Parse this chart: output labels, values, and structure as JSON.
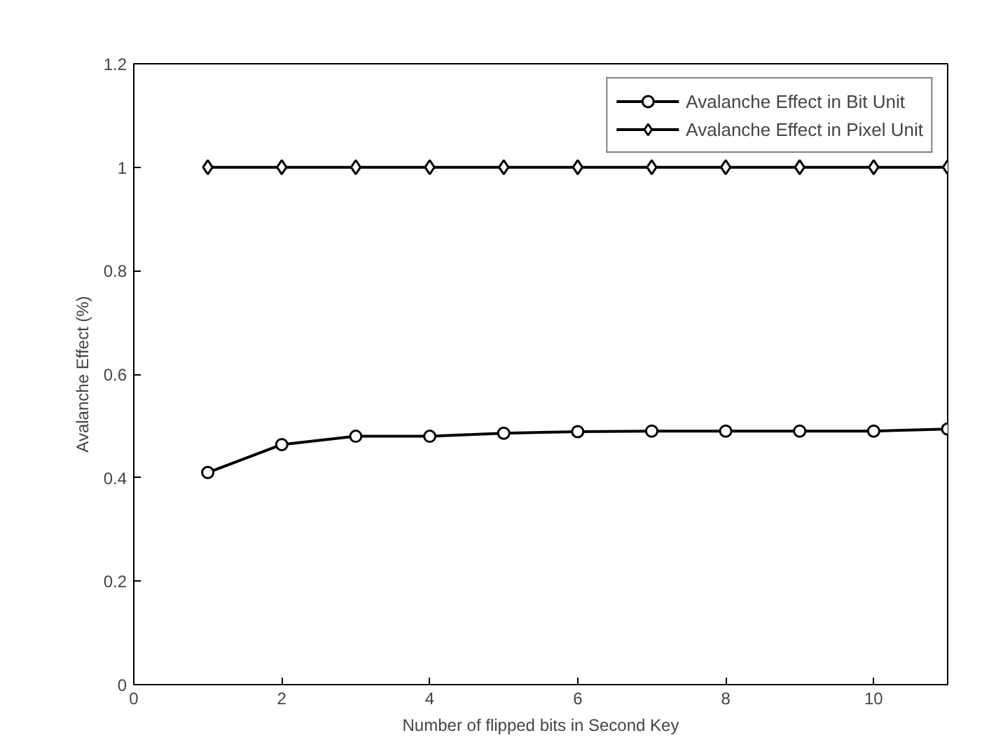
{
  "chart_data": {
    "type": "line",
    "xlabel": "Number of flipped bits in Second Key",
    "ylabel": "Avalanche Effect (%)",
    "x": [
      1,
      2,
      3,
      4,
      5,
      6,
      7,
      8,
      9,
      10,
      11
    ],
    "series": [
      {
        "name": "Avalanche Effect in Bit Unit",
        "color": "#000000",
        "marker": "circle",
        "values": [
          0.41,
          0.464,
          0.48,
          0.48,
          0.486,
          0.489,
          0.49,
          0.49,
          0.49,
          0.49,
          0.494
        ]
      },
      {
        "name": "Avalanche Effect in Pixel Unit",
        "color": "#000000",
        "marker": "diamond",
        "values": [
          1,
          1,
          1,
          1,
          1,
          1,
          1,
          1,
          1,
          1,
          1
        ]
      }
    ],
    "xlim": [
      0,
      11
    ],
    "xticks": [
      0,
      2,
      4,
      6,
      8,
      10
    ],
    "ylim": [
      0,
      1.2
    ],
    "yticks": [
      0,
      0.2,
      0.4,
      0.6,
      0.8,
      1,
      1.2
    ],
    "grid": false,
    "legend": "top right",
    "line_style": "solid"
  }
}
